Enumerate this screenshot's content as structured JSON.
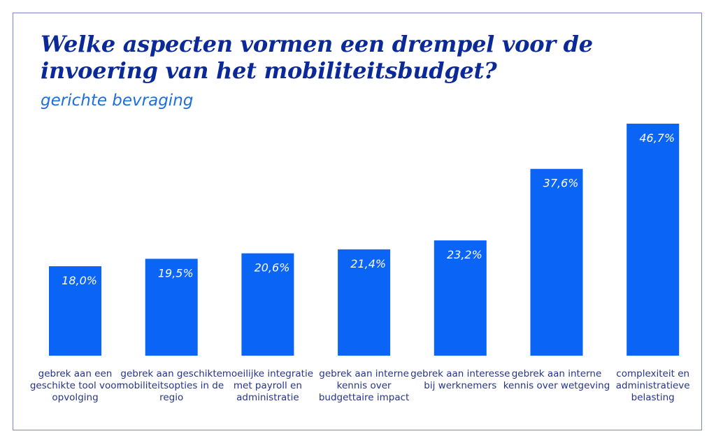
{
  "chart_data": {
    "type": "bar",
    "title": "Welke aspecten vormen een drempel voor de invoering van het mobiliteitsbudget?",
    "subtitle": "gerichte bevraging",
    "categories": [
      "gebrek aan een geschikte tool voor opvolging",
      "gebrek aan geschikte mobiliteitsopties in de regio",
      "moeilijke integratie met payroll en administratie",
      "gebrek aan interne kennis over budgettaire impact",
      "gebrek aan interesse bij werknemers",
      "gebrek aan interne kennis over wetgeving",
      "complexiteit en administratieve belasting"
    ],
    "values": [
      18.0,
      19.5,
      20.6,
      21.4,
      23.2,
      37.6,
      46.7
    ],
    "data_labels": [
      "18,0%",
      "19,5%",
      "20,6%",
      "21,4%",
      "23,2%",
      "37,6%",
      "46,7%"
    ],
    "ylim": [
      0,
      46.7
    ],
    "grid": false,
    "axes_visible": false,
    "colors": {
      "bar": "#0a64f5",
      "title": "#0b2a98",
      "subtitle": "#1d6fe0",
      "label": "#25348a"
    }
  }
}
